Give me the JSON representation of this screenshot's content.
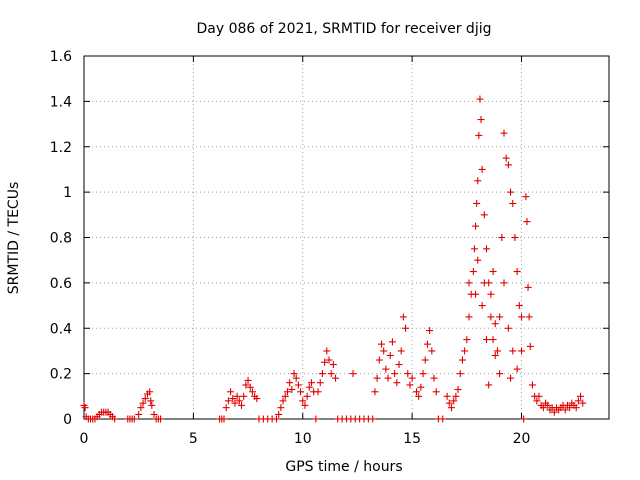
{
  "chart_data": {
    "type": "scatter",
    "title": "Day 086 of 2021, SRMTID for receiver djig",
    "xlabel": "GPS time / hours",
    "ylabel": "SRMTID / TECUs",
    "xlim": [
      0,
      24
    ],
    "ylim": [
      0,
      1.6
    ],
    "xticks": [
      0,
      5,
      10,
      15,
      20
    ],
    "xtick_labels": [
      "0",
      "5",
      "10",
      "15",
      "20"
    ],
    "yticks": [
      0,
      0.2,
      0.4,
      0.6,
      0.8,
      1,
      1.2,
      1.4,
      1.6
    ],
    "ytick_labels": [
      "0",
      "0.2",
      "0.4",
      "0.6",
      "0.8",
      "1",
      "1.2",
      "1.4",
      "1.6"
    ],
    "grid": true,
    "marker": "+",
    "color": "#e00000",
    "series": [
      {
        "name": "SRMTID",
        "points": [
          [
            0.0,
            0.06
          ],
          [
            0.05,
            0.05
          ],
          [
            0.1,
            0.01
          ],
          [
            0.2,
            0.0
          ],
          [
            0.3,
            0.0
          ],
          [
            0.4,
            0.0
          ],
          [
            0.5,
            0.0
          ],
          [
            0.6,
            0.01
          ],
          [
            0.7,
            0.02
          ],
          [
            0.8,
            0.03
          ],
          [
            0.9,
            0.03
          ],
          [
            1.0,
            0.03
          ],
          [
            1.1,
            0.03
          ],
          [
            1.2,
            0.02
          ],
          [
            1.3,
            0.01
          ],
          [
            1.4,
            0.0
          ],
          [
            2.0,
            0.0
          ],
          [
            2.1,
            0.0
          ],
          [
            2.2,
            0.0
          ],
          [
            2.3,
            0.0
          ],
          [
            2.5,
            0.02
          ],
          [
            2.6,
            0.05
          ],
          [
            2.7,
            0.07
          ],
          [
            2.8,
            0.09
          ],
          [
            2.9,
            0.11
          ],
          [
            3.0,
            0.12
          ],
          [
            3.05,
            0.08
          ],
          [
            3.1,
            0.06
          ],
          [
            3.2,
            0.02
          ],
          [
            3.3,
            0.0
          ],
          [
            3.4,
            0.0
          ],
          [
            3.5,
            0.0
          ],
          [
            6.2,
            0.0
          ],
          [
            6.3,
            0.0
          ],
          [
            6.4,
            0.0
          ],
          [
            6.5,
            0.05
          ],
          [
            6.6,
            0.08
          ],
          [
            6.7,
            0.12
          ],
          [
            6.8,
            0.09
          ],
          [
            6.9,
            0.07
          ],
          [
            7.0,
            0.1
          ],
          [
            7.1,
            0.08
          ],
          [
            7.2,
            0.06
          ],
          [
            7.3,
            0.1
          ],
          [
            7.4,
            0.15
          ],
          [
            7.5,
            0.17
          ],
          [
            7.6,
            0.14
          ],
          [
            7.7,
            0.12
          ],
          [
            7.8,
            0.1
          ],
          [
            7.9,
            0.09
          ],
          [
            8.0,
            0.0
          ],
          [
            8.2,
            0.0
          ],
          [
            8.4,
            0.0
          ],
          [
            8.6,
            0.0
          ],
          [
            8.8,
            0.0
          ],
          [
            8.9,
            0.02
          ],
          [
            9.0,
            0.05
          ],
          [
            9.1,
            0.08
          ],
          [
            9.2,
            0.1
          ],
          [
            9.3,
            0.12
          ],
          [
            9.4,
            0.16
          ],
          [
            9.5,
            0.13
          ],
          [
            9.6,
            0.2
          ],
          [
            9.7,
            0.18
          ],
          [
            9.8,
            0.15
          ],
          [
            9.9,
            0.12
          ],
          [
            10.0,
            0.08
          ],
          [
            10.1,
            0.06
          ],
          [
            10.2,
            0.1
          ],
          [
            10.3,
            0.14
          ],
          [
            10.4,
            0.16
          ],
          [
            10.5,
            0.12
          ],
          [
            10.6,
            0.0
          ],
          [
            10.7,
            0.12
          ],
          [
            10.8,
            0.16
          ],
          [
            10.9,
            0.2
          ],
          [
            11.0,
            0.25
          ],
          [
            11.1,
            0.3
          ],
          [
            11.2,
            0.26
          ],
          [
            11.3,
            0.2
          ],
          [
            11.4,
            0.24
          ],
          [
            11.5,
            0.18
          ],
          [
            11.6,
            0.0
          ],
          [
            11.8,
            0.0
          ],
          [
            12.0,
            0.0
          ],
          [
            12.2,
            0.0
          ],
          [
            12.3,
            0.2
          ],
          [
            12.4,
            0.0
          ],
          [
            12.6,
            0.0
          ],
          [
            12.8,
            0.0
          ],
          [
            13.0,
            0.0
          ],
          [
            13.2,
            0.0
          ],
          [
            13.3,
            0.12
          ],
          [
            13.4,
            0.18
          ],
          [
            13.5,
            0.26
          ],
          [
            13.6,
            0.33
          ],
          [
            13.7,
            0.3
          ],
          [
            13.8,
            0.22
          ],
          [
            13.9,
            0.18
          ],
          [
            14.0,
            0.28
          ],
          [
            14.1,
            0.34
          ],
          [
            14.2,
            0.2
          ],
          [
            14.3,
            0.16
          ],
          [
            14.4,
            0.24
          ],
          [
            14.5,
            0.3
          ],
          [
            14.6,
            0.45
          ],
          [
            14.7,
            0.4
          ],
          [
            14.8,
            0.2
          ],
          [
            14.9,
            0.15
          ],
          [
            15.0,
            0.18
          ],
          [
            15.2,
            0.12
          ],
          [
            15.3,
            0.1
          ],
          [
            15.4,
            0.14
          ],
          [
            15.5,
            0.2
          ],
          [
            15.6,
            0.26
          ],
          [
            15.7,
            0.33
          ],
          [
            15.8,
            0.39
          ],
          [
            15.9,
            0.3
          ],
          [
            16.0,
            0.18
          ],
          [
            16.1,
            0.12
          ],
          [
            16.2,
            0.0
          ],
          [
            16.4,
            0.0
          ],
          [
            16.6,
            0.1
          ],
          [
            16.7,
            0.07
          ],
          [
            16.8,
            0.05
          ],
          [
            16.9,
            0.08
          ],
          [
            17.0,
            0.1
          ],
          [
            17.1,
            0.13
          ],
          [
            17.2,
            0.2
          ],
          [
            17.3,
            0.26
          ],
          [
            17.4,
            0.3
          ],
          [
            17.5,
            0.35
          ],
          [
            17.6,
            0.45
          ],
          [
            17.7,
            0.55
          ],
          [
            17.8,
            0.65
          ],
          [
            17.85,
            0.75
          ],
          [
            17.9,
            0.85
          ],
          [
            17.95,
            0.95
          ],
          [
            18.0,
            1.05
          ],
          [
            18.05,
            1.25
          ],
          [
            18.1,
            1.41
          ],
          [
            18.15,
            1.32
          ],
          [
            18.2,
            1.1
          ],
          [
            18.3,
            0.9
          ],
          [
            18.4,
            0.75
          ],
          [
            18.5,
            0.6
          ],
          [
            18.6,
            0.45
          ],
          [
            18.7,
            0.35
          ],
          [
            18.8,
            0.28
          ],
          [
            18.9,
            0.3
          ],
          [
            19.0,
            0.45
          ],
          [
            19.1,
            0.8
          ],
          [
            19.2,
            1.26
          ],
          [
            19.3,
            1.15
          ],
          [
            19.4,
            1.12
          ],
          [
            19.5,
            1.0
          ],
          [
            19.6,
            0.95
          ],
          [
            19.7,
            0.8
          ],
          [
            19.8,
            0.65
          ],
          [
            19.9,
            0.5
          ],
          [
            20.0,
            0.3
          ],
          [
            20.1,
            0.0
          ],
          [
            20.2,
            0.98
          ],
          [
            20.25,
            0.87
          ],
          [
            20.3,
            0.58
          ],
          [
            20.35,
            0.45
          ],
          [
            20.4,
            0.32
          ],
          [
            20.5,
            0.15
          ],
          [
            20.6,
            0.1
          ],
          [
            20.7,
            0.08
          ],
          [
            20.8,
            0.1
          ],
          [
            20.9,
            0.06
          ],
          [
            21.0,
            0.05
          ],
          [
            21.1,
            0.07
          ],
          [
            21.2,
            0.06
          ],
          [
            21.3,
            0.04
          ],
          [
            21.4,
            0.05
          ],
          [
            21.5,
            0.03
          ],
          [
            21.6,
            0.05
          ],
          [
            21.7,
            0.04
          ],
          [
            21.8,
            0.05
          ],
          [
            21.9,
            0.06
          ],
          [
            22.0,
            0.04
          ],
          [
            22.1,
            0.06
          ],
          [
            22.2,
            0.05
          ],
          [
            22.3,
            0.07
          ],
          [
            22.4,
            0.06
          ],
          [
            22.5,
            0.05
          ],
          [
            22.6,
            0.08
          ],
          [
            22.7,
            0.1
          ],
          [
            22.8,
            0.07
          ],
          [
            17.6,
            0.6
          ],
          [
            17.9,
            0.55
          ],
          [
            18.0,
            0.7
          ],
          [
            18.2,
            0.5
          ],
          [
            18.3,
            0.6
          ],
          [
            18.4,
            0.35
          ],
          [
            18.6,
            0.55
          ],
          [
            18.8,
            0.42
          ],
          [
            19.0,
            0.2
          ],
          [
            19.2,
            0.6
          ],
          [
            19.4,
            0.4
          ],
          [
            19.6,
            0.3
          ],
          [
            19.8,
            0.22
          ],
          [
            20.0,
            0.45
          ],
          [
            18.5,
            0.15
          ],
          [
            19.5,
            0.18
          ],
          [
            18.7,
            0.65
          ]
        ]
      }
    ]
  }
}
